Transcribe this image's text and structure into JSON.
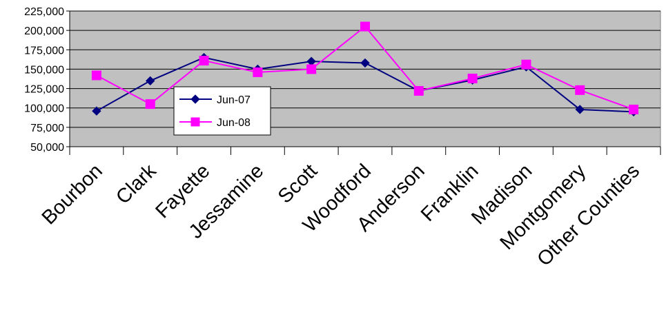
{
  "chart_data": {
    "type": "line",
    "title": "",
    "xlabel": "",
    "ylabel": "",
    "categories": [
      "Bourbon",
      "Clark",
      "Fayette",
      "Jessamine",
      "Scott",
      "Woodford",
      "Anderson",
      "Franklin",
      "Madison",
      "Montgomery",
      "Other Counties"
    ],
    "ylim": [
      50000,
      225000
    ],
    "yticks": [
      "50,000",
      "75,000",
      "100,000",
      "125,000",
      "150,000",
      "175,000",
      "200,000",
      "225,000"
    ],
    "ytick_values": [
      50000,
      75000,
      100000,
      125000,
      150000,
      175000,
      200000,
      225000
    ],
    "grid": true,
    "legend_position": "center-left",
    "plot_background": "#c0c0c0",
    "series": [
      {
        "name": "Jun-07",
        "color": "#000080",
        "marker": "diamond",
        "values": [
          96000,
          135000,
          165000,
          150000,
          160000,
          158000,
          122000,
          136000,
          153000,
          98000,
          95000
        ]
      },
      {
        "name": "Jun-08",
        "color": "#ff00ff",
        "marker": "square",
        "values": [
          142000,
          105000,
          161000,
          146000,
          150000,
          205000,
          122000,
          138000,
          156000,
          123000,
          98000
        ]
      }
    ]
  }
}
